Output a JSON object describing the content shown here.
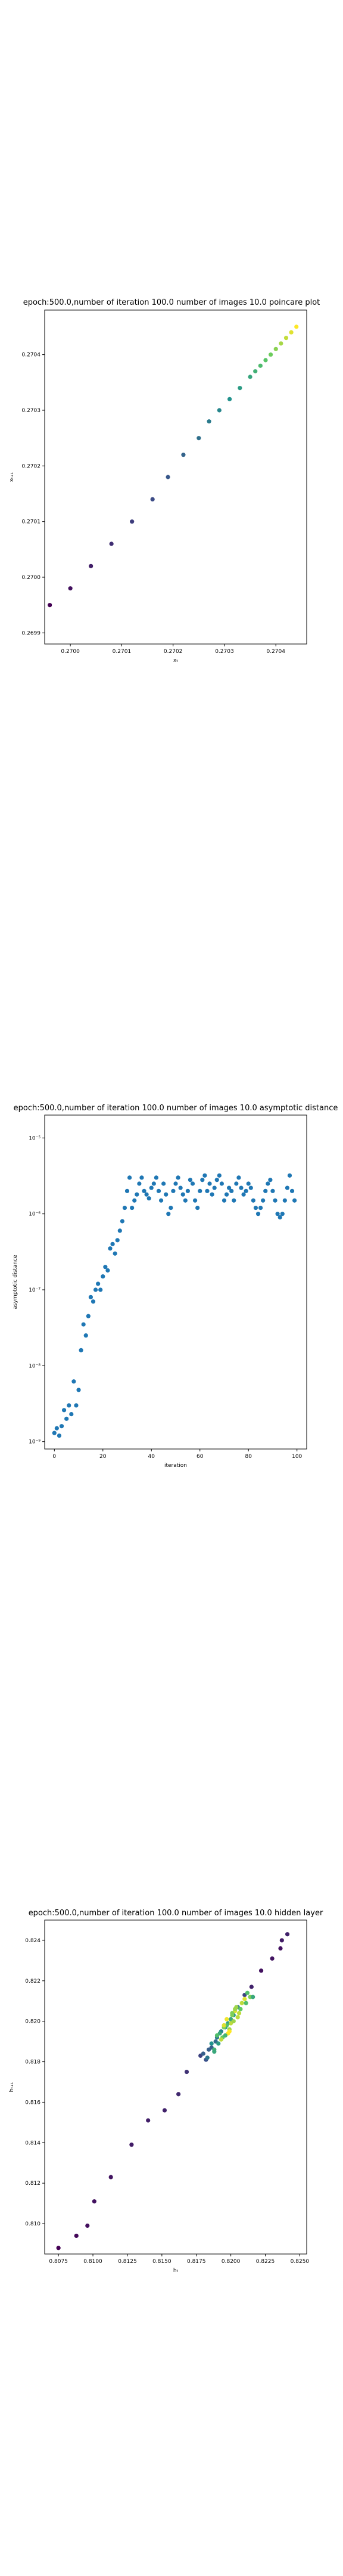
{
  "chart_data": [
    {
      "type": "scatter",
      "title": "epoch:500.0,number of iteration 100.0 number of images 10.0 poincare plot",
      "xlabel": "xₜ",
      "ylabel": "xₜ₊₁",
      "xlim": [
        0.26995,
        0.27046
      ],
      "ylim": [
        0.26988,
        0.27048
      ],
      "x_ticks": [
        "0.2700",
        "0.2701",
        "0.2702",
        "0.2703",
        "0.2704"
      ],
      "y_ticks": [
        "0.2699",
        "0.2700",
        "0.2701",
        "0.2702",
        "0.2703",
        "0.2704"
      ],
      "colormap": "viridis",
      "x": [
        0.26996,
        0.27,
        0.27004,
        0.27008,
        0.27012,
        0.27016,
        0.27019,
        0.27022,
        0.27025,
        0.27027,
        0.27029,
        0.27031,
        0.27033,
        0.27035,
        0.27036,
        0.27037,
        0.27038,
        0.27039,
        0.2704,
        0.27041,
        0.27042,
        0.27043,
        0.27044
      ],
      "y": [
        0.26995,
        0.26998,
        0.27002,
        0.27006,
        0.2701,
        0.27014,
        0.27018,
        0.27022,
        0.27025,
        0.27028,
        0.2703,
        0.27032,
        0.27034,
        0.27036,
        0.27037,
        0.27038,
        0.27039,
        0.2704,
        0.27041,
        0.27042,
        0.27043,
        0.27044,
        0.27045
      ]
    },
    {
      "type": "scatter",
      "title": "epoch:500.0,number of iteration 100.0  number of images 10.0 asymptotic distance",
      "xlabel": "iteration",
      "ylabel": "asymptotic distance",
      "xlim": [
        -4,
        104
      ],
      "ylim": [
        8e-10,
        2e-05
      ],
      "yscale": "log",
      "x_ticks": [
        "0",
        "20",
        "40",
        "60",
        "80",
        "100"
      ],
      "y_ticks": [
        "10⁻⁹",
        "10⁻⁸",
        "10⁻⁷",
        "10⁻⁶",
        "10⁻⁵"
      ],
      "color": "#1f77b4",
      "x": [
        0,
        1,
        2,
        3,
        4,
        5,
        6,
        7,
        8,
        9,
        10,
        11,
        12,
        13,
        14,
        15,
        16,
        17,
        18,
        19,
        20,
        21,
        22,
        23,
        24,
        25,
        26,
        27,
        28,
        29,
        30,
        31,
        32,
        33,
        34,
        35,
        36,
        37,
        38,
        39,
        40,
        41,
        42,
        43,
        44,
        45,
        46,
        47,
        48,
        49,
        50,
        51,
        52,
        53,
        54,
        55,
        56,
        57,
        58,
        59,
        60,
        61,
        62,
        63,
        64,
        65,
        66,
        67,
        68,
        69,
        70,
        71,
        72,
        73,
        74,
        75,
        76,
        77,
        78,
        79,
        80,
        81,
        82,
        83,
        84,
        85,
        86,
        87,
        88,
        89,
        90,
        91,
        92,
        93,
        94,
        95,
        96,
        97,
        98,
        99
      ],
      "y": [
        1.3e-09,
        1.5e-09,
        1.2e-09,
        1.6e-09,
        2.6e-09,
        2e-09,
        3e-09,
        2.3e-09,
        6.2e-09,
        3e-09,
        4.8e-09,
        1.6e-08,
        3.5e-08,
        2.5e-08,
        4.5e-08,
        8e-08,
        7e-08,
        1e-07,
        1.2e-07,
        1e-07,
        1.5e-07,
        2e-07,
        1.8e-07,
        3.5e-07,
        4e-07,
        3e-07,
        4.5e-07,
        6e-07,
        8e-07,
        1.2e-06,
        2e-06,
        3e-06,
        1.2e-06,
        1.5e-06,
        1.8e-06,
        2.5e-06,
        3e-06,
        2e-06,
        1.8e-06,
        1.6e-06,
        2.2e-06,
        2.5e-06,
        3e-06,
        2e-06,
        1.5e-06,
        2.5e-06,
        1.8e-06,
        1e-06,
        1.2e-06,
        2e-06,
        2.5e-06,
        3e-06,
        2.2e-06,
        1.8e-06,
        1.5e-06,
        2e-06,
        2.8e-06,
        2.5e-06,
        1.5e-06,
        1.2e-06,
        2e-06,
        2.8e-06,
        3.2e-06,
        2e-06,
        2.5e-06,
        1.8e-06,
        2.2e-06,
        2.8e-06,
        3.2e-06,
        2.5e-06,
        1.5e-06,
        1.8e-06,
        2.2e-06,
        2e-06,
        1.5e-06,
        2.5e-06,
        3e-06,
        2.2e-06,
        1.8e-06,
        2e-06,
        2.5e-06,
        2.2e-06,
        1.5e-06,
        1.2e-06,
        1e-06,
        1.2e-06,
        1.5e-06,
        2e-06,
        2.5e-06,
        2.8e-06,
        2e-06,
        1.5e-06,
        1e-06,
        9e-07,
        1e-06,
        1.5e-06,
        2.2e-06,
        3.2e-06,
        2e-06,
        1.5e-06
      ]
    },
    {
      "type": "scatter",
      "title": "epoch:500.0,number of iteration 100.0  number of images 10.0 hidden layer",
      "xlabel": "hₜ",
      "ylabel": "hₜ₊₁",
      "xlim": [
        0.8065,
        0.8255
      ],
      "ylim": [
        0.8085,
        0.825
      ],
      "x_ticks": [
        "0.8075",
        "0.8100",
        "0.8125",
        "0.8150",
        "0.8175",
        "0.8200",
        "0.8225",
        "0.8250"
      ],
      "y_ticks": [
        "0.810",
        "0.812",
        "0.814",
        "0.816",
        "0.818",
        "0.820",
        "0.822",
        "0.824"
      ],
      "colormap": "viridis",
      "x": [
        0.8075,
        0.8088,
        0.8096,
        0.8101,
        0.8113,
        0.8128,
        0.814,
        0.8152,
        0.8162,
        0.8168,
        0.8178,
        0.8182,
        0.8186,
        0.8189,
        0.819,
        0.8184,
        0.8193,
        0.8196,
        0.8198,
        0.82,
        0.8202,
        0.8205,
        0.821,
        0.8215,
        0.8222,
        0.823,
        0.8237,
        0.8241,
        0.8236,
        0.818,
        0.8186,
        0.8192,
        0.8197,
        0.8201,
        0.8204,
        0.8208,
        0.8212,
        0.8188,
        0.8194,
        0.8199,
        0.8206,
        0.821,
        0.8214,
        0.819,
        0.8195,
        0.82,
        0.8203,
        0.8198,
        0.8193,
        0.8188,
        0.8202,
        0.8207,
        0.8183,
        0.8191,
        0.8196,
        0.8201,
        0.8205,
        0.8211,
        0.8216,
        0.8195,
        0.8199,
        0.8197,
        0.8203
      ],
      "y": [
        0.8088,
        0.8094,
        0.8099,
        0.8111,
        0.8123,
        0.8139,
        0.8151,
        0.8156,
        0.8164,
        0.8175,
        0.8183,
        0.8181,
        0.8187,
        0.819,
        0.8192,
        0.8186,
        0.8195,
        0.8197,
        0.8199,
        0.8201,
        0.8203,
        0.8207,
        0.8213,
        0.8217,
        0.8225,
        0.8231,
        0.824,
        0.8243,
        0.8236,
        0.8184,
        0.8189,
        0.8194,
        0.8198,
        0.8203,
        0.8207,
        0.8209,
        0.8214,
        0.8186,
        0.8192,
        0.8196,
        0.8204,
        0.8211,
        0.8212,
        0.8193,
        0.8197,
        0.8199,
        0.8205,
        0.8194,
        0.8191,
        0.8185,
        0.82,
        0.8206,
        0.8182,
        0.8189,
        0.8193,
        0.8204,
        0.8202,
        0.8209,
        0.8212,
        0.8198,
        0.8195,
        0.8201,
        0.8206
      ],
      "z": [
        0,
        0.02,
        0.04,
        0.05,
        0.06,
        0.08,
        0.09,
        0.1,
        0.12,
        0.15,
        0.2,
        0.25,
        0.3,
        0.35,
        0.4,
        0.3,
        0.45,
        0.5,
        0.55,
        0.6,
        0.5,
        0.4,
        0.2,
        0.1,
        0.05,
        0.06,
        0.08,
        0.1,
        0.05,
        0.3,
        0.5,
        0.6,
        0.7,
        0.8,
        0.85,
        0.9,
        0.7,
        0.65,
        0.75,
        0.85,
        0.9,
        0.95,
        0.8,
        0.7,
        0.8,
        0.9,
        0.95,
        1.0,
        0.9,
        0.6,
        0.85,
        0.75,
        0.4,
        0.55,
        0.65,
        0.8,
        0.9,
        0.7,
        0.6,
        0.95,
        1.0,
        0.98,
        0.85
      ]
    }
  ]
}
